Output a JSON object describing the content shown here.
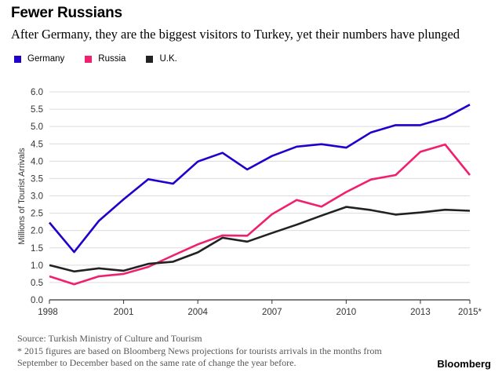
{
  "header": {
    "title": "Fewer Russians",
    "subtitle": "After Germany, they are the biggest visitors to Turkey, yet their numbers have plunged"
  },
  "legend": [
    {
      "label": "Germany",
      "color": "#2200cc"
    },
    {
      "label": "Russia",
      "color": "#f0206e"
    },
    {
      "label": "U.K.",
      "color": "#222222"
    }
  ],
  "chart_data": {
    "type": "line",
    "title": "Fewer Russians",
    "xlabel": "",
    "ylabel": "Millions of Tourist Arrivals",
    "x": [
      1998,
      1999,
      2000,
      2001,
      2002,
      2003,
      2004,
      2005,
      2006,
      2007,
      2008,
      2009,
      2010,
      2011,
      2012,
      2013,
      2014,
      2015
    ],
    "xticks": [
      1998,
      2001,
      2004,
      2007,
      2010,
      2013,
      2015
    ],
    "xtick_labels": [
      "1998",
      "2001",
      "2004",
      "2007",
      "2010",
      "2013",
      "2015*"
    ],
    "ylim": [
      0,
      6
    ],
    "yticks": [
      "0.0",
      "0.5",
      "1.0",
      "1.5",
      "2.0",
      "2.5",
      "3.0",
      "3.5",
      "4.0",
      "4.5",
      "5.0",
      "5.5",
      "6.0"
    ],
    "grid": true,
    "series": [
      {
        "name": "Germany",
        "color": "#2200cc",
        "values": [
          2.23,
          1.38,
          2.28,
          2.9,
          3.48,
          3.35,
          3.99,
          4.24,
          3.76,
          4.15,
          4.42,
          4.49,
          4.39,
          4.83,
          5.04,
          5.04,
          5.25,
          5.63
        ]
      },
      {
        "name": "Russia",
        "color": "#f0206e",
        "values": [
          0.68,
          0.45,
          0.68,
          0.75,
          0.95,
          1.28,
          1.6,
          1.86,
          1.85,
          2.47,
          2.88,
          2.69,
          3.11,
          3.47,
          3.6,
          4.27,
          4.48,
          3.6
        ]
      },
      {
        "name": "U.K.",
        "color": "#222222",
        "values": [
          1.0,
          0.82,
          0.91,
          0.84,
          1.04,
          1.1,
          1.37,
          1.79,
          1.68,
          1.93,
          2.17,
          2.43,
          2.68,
          2.59,
          2.46,
          2.52,
          2.6,
          2.57
        ]
      }
    ]
  },
  "footer": {
    "source": "Source: Turkish Ministry of Culture and Tourism",
    "note": "* 2015 figures are based on Bloomberg News projections for tourists arrivals in the months from September to December based on the same rate of change the year before.",
    "brand": "Bloomberg"
  }
}
